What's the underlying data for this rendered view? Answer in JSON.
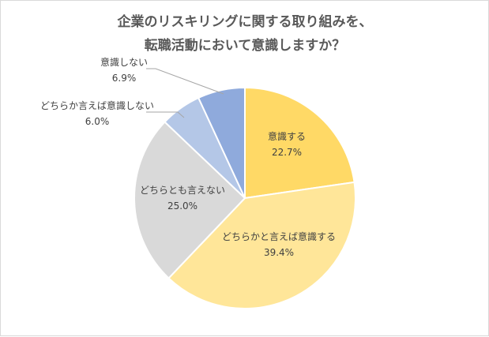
{
  "chart_data": {
    "type": "pie",
    "title_lines": [
      "企業のリスキリングに関する取り組みを、",
      "転職活動において意識しますか？"
    ],
    "slices": [
      {
        "label": "意識する",
        "value": 22.7,
        "display": "22.7%",
        "color": "#ffd966"
      },
      {
        "label": "どちらかと言えば意識する",
        "value": 39.4,
        "display": "39.4%",
        "color": "#ffe699"
      },
      {
        "label": "どちらとも言えない",
        "value": 25.0,
        "display": "25.0%",
        "color": "#d9d9d9"
      },
      {
        "label": "どちらか言えば意識しない",
        "value": 6.0,
        "display": "6.0%",
        "color": "#b4c7e7"
      },
      {
        "label": "意識しない",
        "value": 6.9,
        "display": "6.9%",
        "color": "#8faadc"
      }
    ],
    "start": "12 o'clock",
    "direction": "clockwise",
    "legend": "none"
  }
}
